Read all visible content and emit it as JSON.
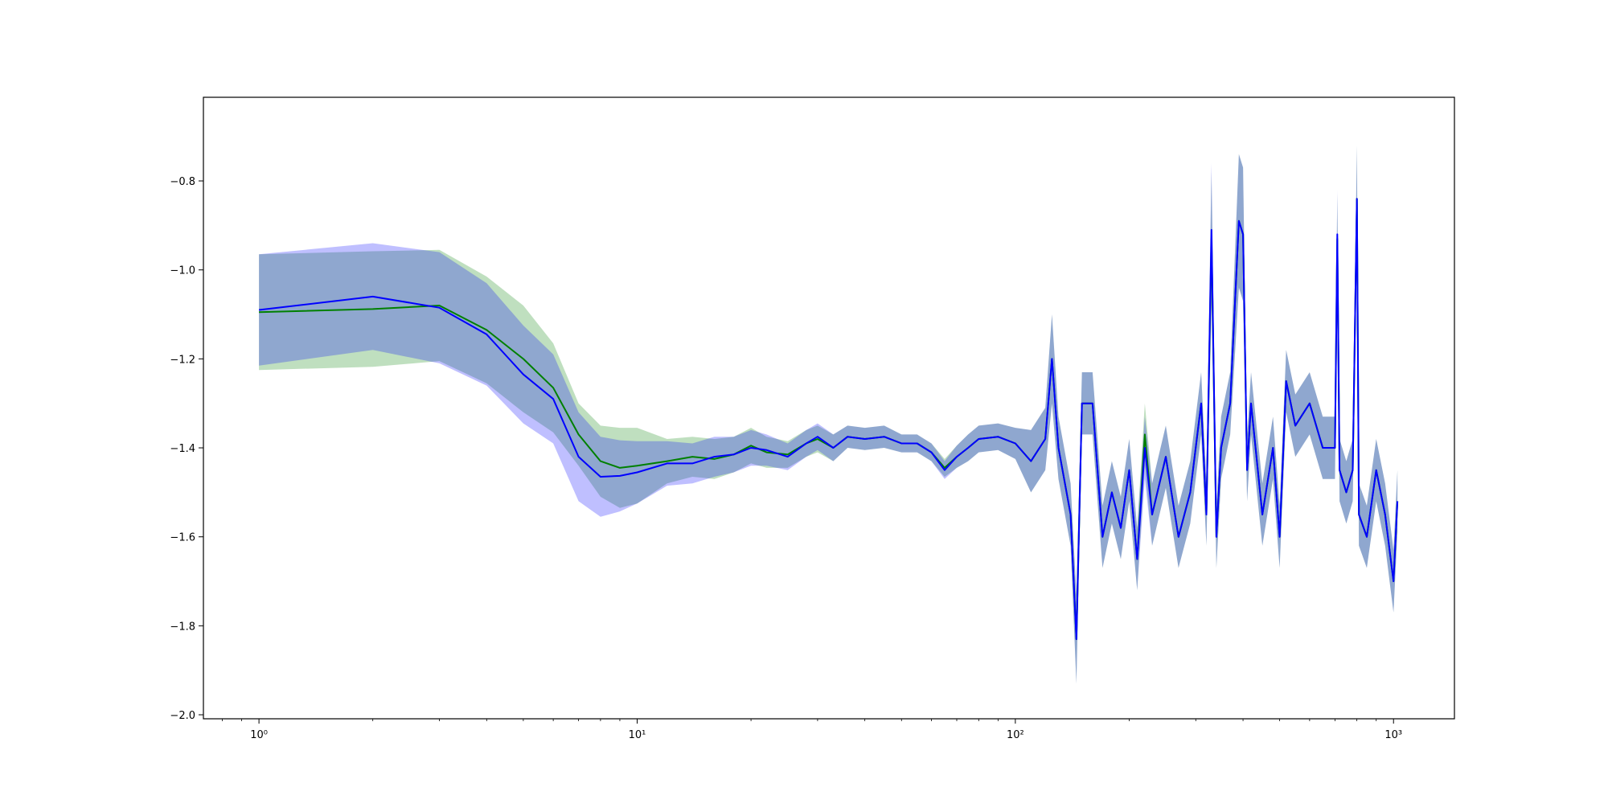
{
  "chart_data": {
    "type": "line",
    "xscale": "log",
    "x": [
      1,
      2,
      3,
      4,
      5,
      6,
      7,
      8,
      9,
      10,
      12,
      14,
      16,
      18,
      20,
      22,
      25,
      28,
      30,
      33,
      36,
      40,
      45,
      50,
      55,
      60,
      65,
      70,
      75,
      80,
      90,
      100,
      110,
      120,
      125,
      130,
      140,
      145,
      150,
      160,
      170,
      180,
      190,
      200,
      210,
      220,
      230,
      250,
      270,
      290,
      310,
      320,
      330,
      340,
      350,
      370,
      390,
      400,
      410,
      420,
      450,
      480,
      500,
      520,
      550,
      600,
      650,
      700,
      710,
      720,
      750,
      780,
      800,
      810,
      850,
      900,
      950,
      1000,
      1024
    ],
    "series": [
      {
        "color": "#008000",
        "values": [
          -1.095,
          -1.088,
          -1.08,
          -1.135,
          -1.2,
          -1.265,
          -1.37,
          -1.43,
          -1.445,
          -1.44,
          -1.43,
          -1.42,
          -1.425,
          -1.415,
          -1.395,
          -1.41,
          -1.415,
          -1.39,
          -1.38,
          -1.4,
          -1.375,
          -1.38,
          -1.375,
          -1.39,
          -1.39,
          -1.41,
          -1.445,
          -1.42,
          -1.4,
          -1.38,
          -1.375,
          -1.39,
          -1.43,
          -1.38,
          -1.2,
          -1.4,
          -1.55,
          -1.83,
          -1.3,
          -1.3,
          -1.6,
          -1.5,
          -1.58,
          -1.45,
          -1.65,
          -1.37,
          -1.55,
          -1.42,
          -1.6,
          -1.5,
          -1.3,
          -1.55,
          -0.93,
          -1.6,
          -1.4,
          -1.3,
          -0.89,
          -0.92,
          -1.45,
          -1.3,
          -1.55,
          -1.4,
          -1.6,
          -1.25,
          -1.35,
          -1.3,
          -1.4,
          -1.4,
          -0.93,
          -1.45,
          -1.5,
          -1.45,
          -0.84,
          -1.55,
          -1.6,
          -1.45,
          -1.55,
          -1.7,
          -1.52
        ],
        "spread": [
          0.13,
          0.13,
          0.125,
          0.12,
          0.12,
          0.1,
          0.07,
          0.08,
          0.09,
          0.085,
          0.05,
          0.045,
          0.045,
          0.04,
          0.04,
          0.035,
          0.03,
          0.03,
          0.03,
          0.03,
          0.025,
          0.025,
          0.025,
          0.02,
          0.02,
          0.02,
          0.02,
          0.025,
          0.03,
          0.03,
          0.03,
          0.035,
          0.07,
          0.07,
          0.1,
          0.07,
          0.07,
          0.1,
          0.07,
          0.07,
          0.07,
          0.07,
          0.07,
          0.07,
          0.07,
          0.07,
          0.07,
          0.07,
          0.07,
          0.07,
          0.07,
          0.07,
          0.15,
          0.07,
          0.07,
          0.07,
          0.15,
          0.15,
          0.07,
          0.07,
          0.07,
          0.07,
          0.07,
          0.07,
          0.07,
          0.07,
          0.07,
          0.07,
          0.1,
          0.07,
          0.07,
          0.07,
          0.12,
          0.07,
          0.07,
          0.07,
          0.07,
          0.07,
          0.07
        ]
      },
      {
        "color": "#0000ff",
        "values": [
          -1.09,
          -1.06,
          -1.085,
          -1.145,
          -1.235,
          -1.29,
          -1.42,
          -1.465,
          -1.463,
          -1.455,
          -1.435,
          -1.435,
          -1.42,
          -1.415,
          -1.4,
          -1.405,
          -1.42,
          -1.39,
          -1.375,
          -1.4,
          -1.375,
          -1.38,
          -1.375,
          -1.39,
          -1.39,
          -1.41,
          -1.45,
          -1.42,
          -1.4,
          -1.38,
          -1.375,
          -1.39,
          -1.43,
          -1.38,
          -1.2,
          -1.4,
          -1.55,
          -1.83,
          -1.3,
          -1.3,
          -1.6,
          -1.5,
          -1.58,
          -1.45,
          -1.65,
          -1.4,
          -1.55,
          -1.42,
          -1.6,
          -1.5,
          -1.3,
          -1.55,
          -0.91,
          -1.6,
          -1.4,
          -1.3,
          -0.89,
          -0.92,
          -1.45,
          -1.3,
          -1.55,
          -1.4,
          -1.6,
          -1.25,
          -1.35,
          -1.3,
          -1.4,
          -1.4,
          -0.92,
          -1.45,
          -1.5,
          -1.45,
          -0.84,
          -1.55,
          -1.6,
          -1.45,
          -1.55,
          -1.7,
          -1.52
        ],
        "spread": [
          0.125,
          0.12,
          0.125,
          0.115,
          0.11,
          0.1,
          0.1,
          0.09,
          0.08,
          0.07,
          0.05,
          0.045,
          0.045,
          0.04,
          0.04,
          0.035,
          0.03,
          0.03,
          0.03,
          0.03,
          0.025,
          0.025,
          0.025,
          0.02,
          0.02,
          0.02,
          0.02,
          0.025,
          0.03,
          0.03,
          0.03,
          0.035,
          0.07,
          0.07,
          0.1,
          0.07,
          0.07,
          0.1,
          0.07,
          0.07,
          0.07,
          0.07,
          0.07,
          0.07,
          0.07,
          0.07,
          0.07,
          0.07,
          0.07,
          0.07,
          0.07,
          0.07,
          0.15,
          0.07,
          0.07,
          0.07,
          0.15,
          0.15,
          0.07,
          0.07,
          0.07,
          0.07,
          0.07,
          0.07,
          0.07,
          0.07,
          0.07,
          0.07,
          0.1,
          0.07,
          0.07,
          0.07,
          0.12,
          0.07,
          0.07,
          0.07,
          0.07,
          0.07,
          0.07
        ]
      }
    ],
    "band_opacity": 0.25,
    "xlim": [
      0.713,
      1449
    ],
    "xticks": [
      {
        "value": 1,
        "label": "10⁰"
      },
      {
        "value": 10,
        "label": "10¹"
      },
      {
        "value": 100,
        "label": "10²"
      },
      {
        "value": 1000,
        "label": "10³"
      }
    ],
    "xminorticks": [
      0.8,
      0.9,
      2,
      3,
      4,
      5,
      6,
      7,
      8,
      9,
      20,
      30,
      40,
      50,
      60,
      70,
      80,
      90,
      200,
      300,
      400,
      500,
      600,
      700,
      800,
      900
    ],
    "ylim": [
      -2.009,
      -0.612
    ],
    "yticks": [
      {
        "value": -2.0,
        "label": "−2.0"
      },
      {
        "value": -1.8,
        "label": "−1.8"
      },
      {
        "value": -1.6,
        "label": "−1.6"
      },
      {
        "value": -1.4,
        "label": "−1.4"
      },
      {
        "value": -1.2,
        "label": "−1.2"
      },
      {
        "value": -1.0,
        "label": "−1.0"
      },
      {
        "value": -0.8,
        "label": "−0.8"
      }
    ]
  }
}
